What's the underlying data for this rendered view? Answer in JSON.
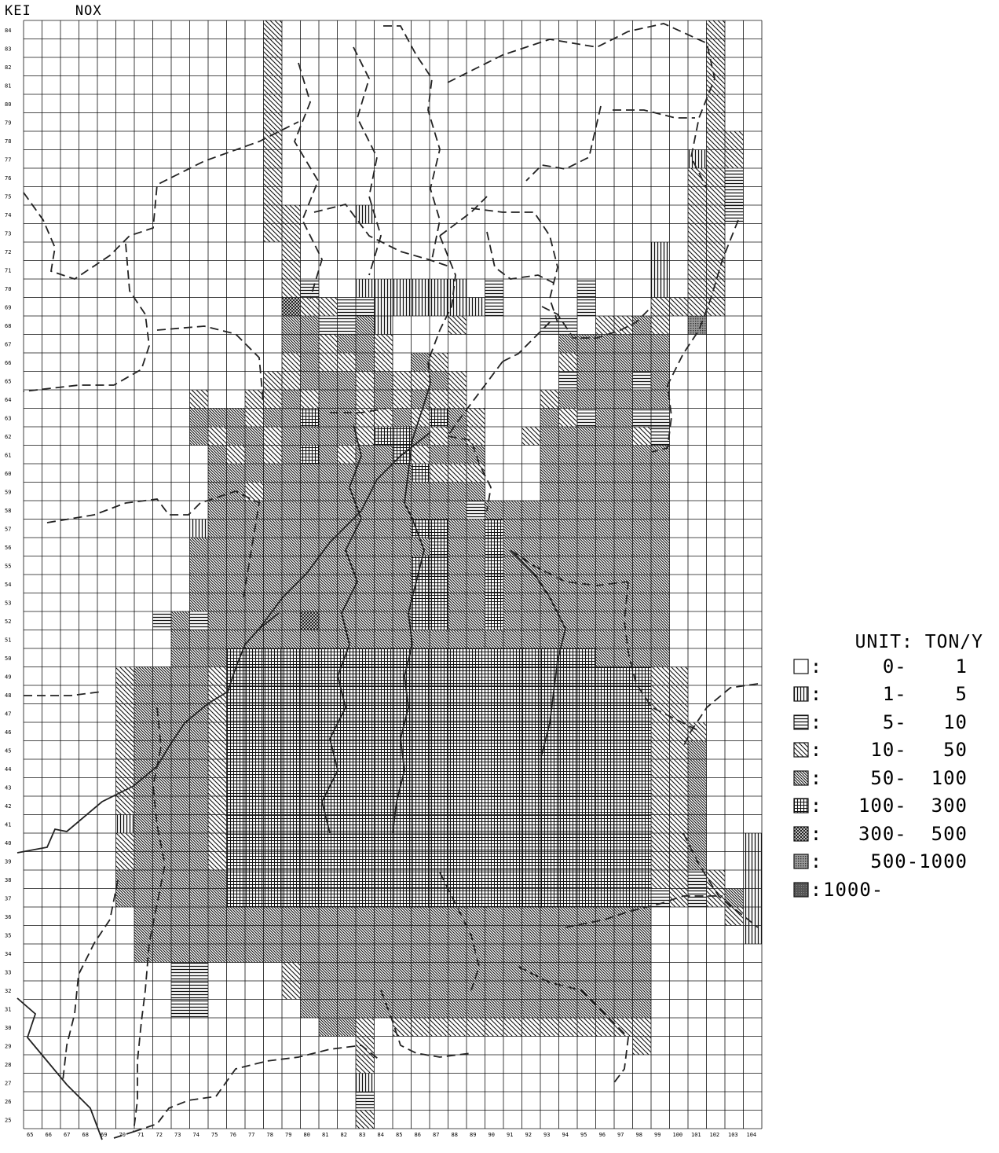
{
  "header": {
    "title": "KEI",
    "pollutant": "NOX"
  },
  "legend": {
    "unit": "UNIT: TON/Y",
    "classes": [
      {
        "label": "0-    1",
        "pattern": "blank"
      },
      {
        "label": "1-    5",
        "pattern": "vertical"
      },
      {
        "label": "5-   10",
        "pattern": "horizontal"
      },
      {
        "label": "10-   50",
        "pattern": "diagonal-sparse"
      },
      {
        "label": "50-  100",
        "pattern": "diagonal-dense"
      },
      {
        "label": "100-  300",
        "pattern": "grid"
      },
      {
        "label": "300-  500",
        "pattern": "crosshatch"
      },
      {
        "label": "500-1000",
        "pattern": "dotted-dense"
      },
      {
        "label": "1000-",
        "pattern": "solid-dark"
      }
    ]
  },
  "grid": {
    "x_labels": [
      "65",
      "66",
      "67",
      "68",
      "69",
      "70",
      "71",
      "72",
      "73",
      "74",
      "75",
      "76",
      "77",
      "78",
      "79",
      "80",
      "81",
      "82",
      "83",
      "84",
      "85",
      "86",
      "87",
      "88",
      "89",
      "90",
      "91",
      "92",
      "93",
      "94",
      "95",
      "96",
      "97",
      "98",
      "99",
      "100",
      "101",
      "102",
      "103",
      "104"
    ],
    "y_labels": [
      "84",
      "83",
      "82",
      "81",
      "80",
      "79",
      "78",
      "77",
      "76",
      "75",
      "74",
      "73",
      "72",
      "71",
      "70",
      "69",
      "68",
      "67",
      "66",
      "65",
      "64",
      "63",
      "62",
      "61",
      "60",
      "59",
      "58",
      "57",
      "56",
      "55",
      "54",
      "53",
      "52",
      "51",
      "50",
      "49",
      "48",
      "47",
      "46",
      "45",
      "44",
      "43",
      "42",
      "41",
      "40",
      "39",
      "38",
      "37",
      "36",
      "35",
      "34",
      "33",
      "32",
      "31",
      "30",
      "29",
      "28",
      "27",
      "26",
      "25"
    ],
    "cell_classes": [
      "0000000000000300000000000000000000000300",
      "0000000000000300000000000000000000000300",
      "0000000000000300000000000000000000000300",
      "0000000000000300000000000000000000000300",
      "0000000000000300000000000000000000000300",
      "0000000000000300000000000000000000000300",
      "0000000000000300000000000000000000000330",
      "0000000000000300000000000000000000001330",
      "0000000000000300000000000000000000003320",
      "0000000000000300000000000000000000003320",
      "0000000000000330001000000000000000003320",
      "0000000000000330000000000000000000003300",
      "0000000000000030000000000000000000103300",
      "0000000000000030000000000000000000103300",
      "0000000000000032001111110200002000103300",
      "0000000000000063322111111200002000333300",
      "0000000000000044224100030000220334307000",
      "0000000000000044344300000000044444400000",
      "0000000000000034334304300000034444400000",
      "0000000000000334443433430000024442400000",
      "0000000003003343443434330000344444400000",
      "0000000004443445443343543000432442200000",
      "0000000004344344443554343003444443200000",
      "0000000000434345434453444000444444400000",
      "0000000000444444444445333000444444400000",
      "0000000000443444444444444000444444400000",
      "0000000000444444444444442444444444400000",
      "0000000001444444444445544544444444400000",
      "0000000004444444444444544544444444400000",
      "0000000004444444444445544544444444400000",
      "0000000004444444444445544544444444400000",
      "0000000004444444444445544544444444400000",
      "0000000242444446444445544544444444400000",
      "0000000044444444444444444444444444400000",
      "0000000044455555555555555555555444400000",
      "0000034444355555555555555555555555330000",
      "0000034444355555555555555555555555330000",
      "0000034444355555555555555555555555330000",
      "0000034444355555555555555555555555333000",
      "0000034444355555555555555555555555334000",
      "0000034444355555555555555555555555334000",
      "0000034444355555555555555555555555334000",
      "0000034444355555555555555555555555334000",
      "0000014444355555555555555555555555334000",
      "0000034444355555555555555555555555334001",
      "0000034444355555555555555555555555334001",
      "0000044444455555555555555555555555332301",
      "0000044444455555555555555555555555232341",
      "0000004444444444444444444444444444000031",
      "0000004444444444444444444444444444000001",
      "0000004444444444444444444444444444000000",
      "0000000022000034444444444444444444000000",
      "0000000022000034444444444444444444000000",
      "0000000022000004444444444444444444000000",
      "0000000000000000443033333333333333000000",
      "0000000000000000003000000000000003000000",
      "0000000000000000003000000000000000000000",
      "0000000000000000001000000000000000000000",
      "0000000000000000002000000000000000000000",
      "0000000000000000003000000000000000000000"
    ]
  },
  "colors": {
    "ink": "#111111",
    "paper": "#ffffff",
    "boundary": "#222222"
  }
}
